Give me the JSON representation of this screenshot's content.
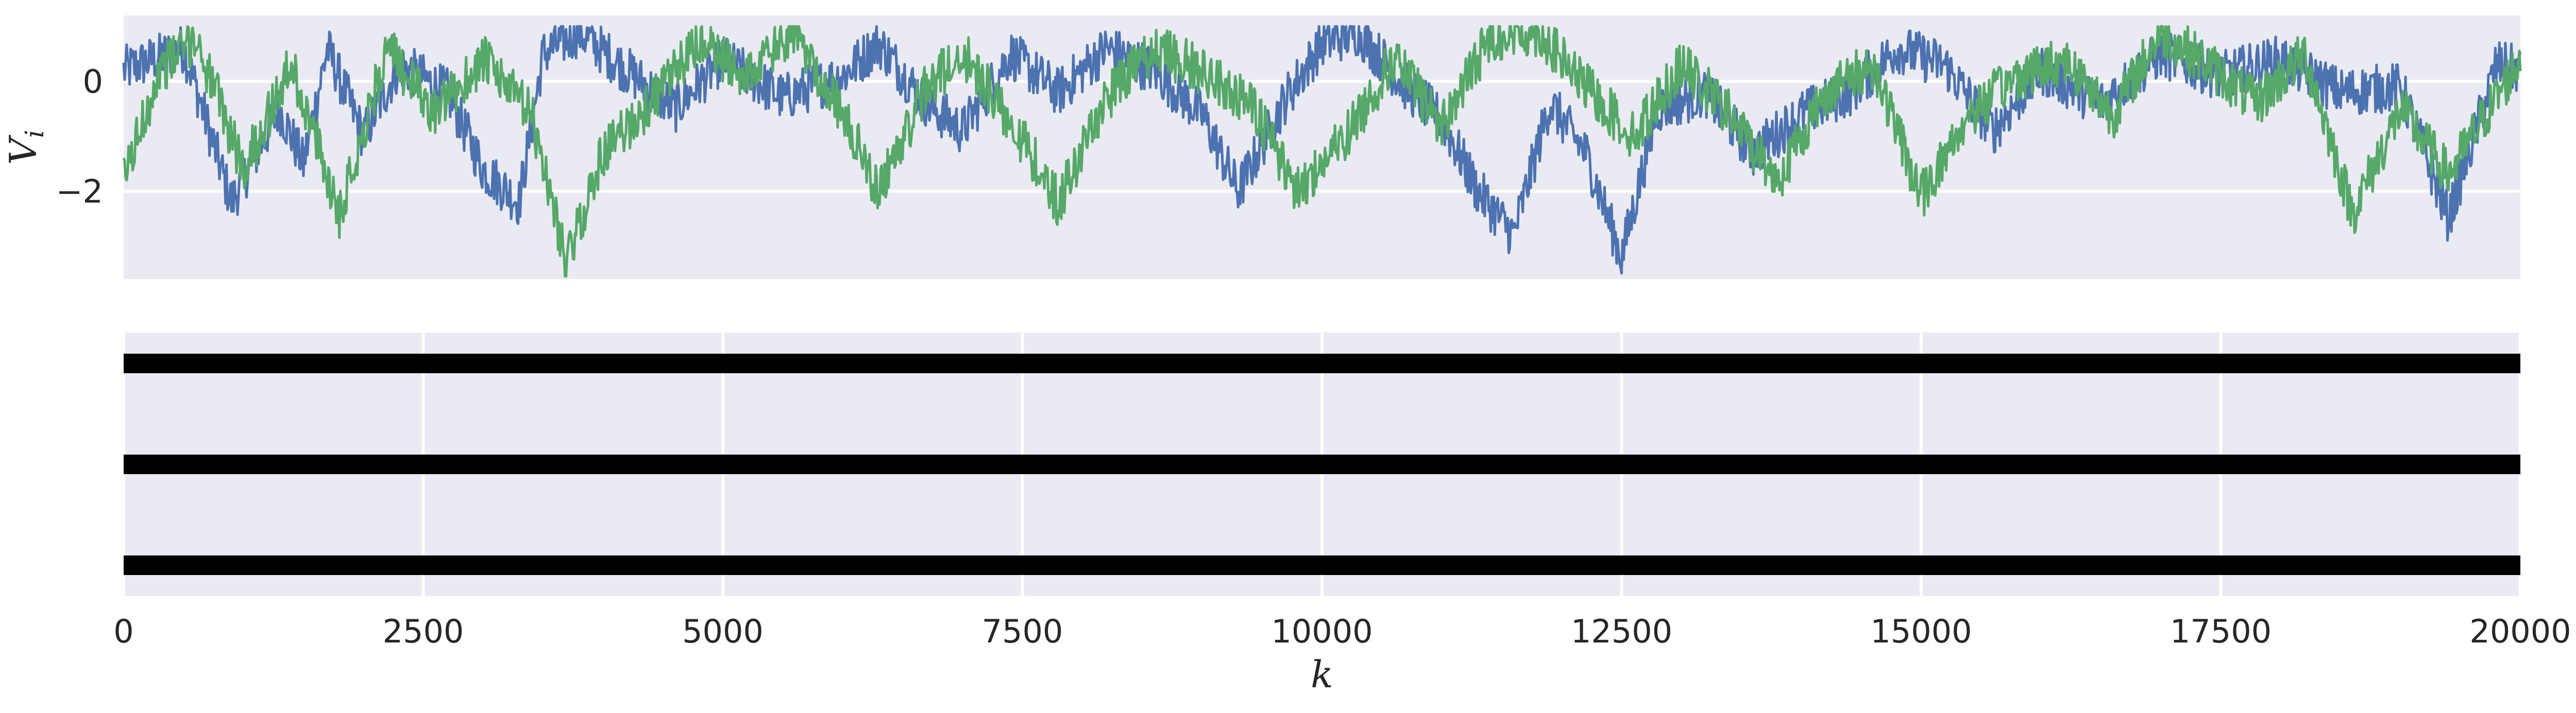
{
  "chart_data": [
    {
      "type": "line",
      "panel": "top",
      "xlabel": "",
      "ylabel": "V_i",
      "ylim": [
        -3.6,
        1.2
      ],
      "xlim": [
        0,
        20000
      ],
      "yticks": [
        0,
        -2
      ],
      "ytick_labels": [
        "0",
        "−2"
      ],
      "grid": true,
      "series": [
        {
          "color": "#4C72B0",
          "x": [
            0,
            500,
            900,
            1300,
            1500,
            1700,
            2000,
            2300,
            2700,
            3000,
            3300,
            3500,
            3800,
            4200,
            4600,
            5000,
            5500,
            6000,
            6300,
            6700,
            7000,
            7400,
            7800,
            8200,
            8600,
            9000,
            9300,
            9700,
            10000,
            10300,
            10700,
            11000,
            11300,
            11600,
            11900,
            12200,
            12500,
            12800,
            13200,
            13600,
            14000,
            14400,
            14800,
            15200,
            15600,
            16000,
            16500,
            17000,
            17500,
            18000,
            18500,
            19000,
            19400,
            19800,
            20000
          ],
          "y": [
            0.2,
            0.6,
            -2.2,
            -0.5,
            -1.5,
            0.6,
            -1.0,
            0.3,
            -0.2,
            -1.6,
            -2.2,
            0.5,
            0.9,
            0.2,
            -0.5,
            0.4,
            -0.3,
            0.1,
            0.7,
            -0.4,
            -0.9,
            0.5,
            -0.2,
            0.6,
            0.2,
            -0.6,
            -2.0,
            -0.3,
            0.7,
            0.9,
            -0.1,
            -0.7,
            -2.0,
            -2.8,
            -0.4,
            -1.3,
            -3.2,
            -0.5,
            -0.2,
            -1.3,
            -0.6,
            -0.2,
            0.6,
            0.3,
            -0.9,
            0.2,
            -0.4,
            0.5,
            0.1,
            0.4,
            -0.2,
            -0.1,
            -2.5,
            0.3,
            0.2
          ]
        },
        {
          "color": "#55A868",
          "x": [
            0,
            300,
            600,
            1000,
            1400,
            1800,
            2200,
            2600,
            3000,
            3400,
            3700,
            4000,
            4400,
            4800,
            5200,
            5600,
            6000,
            6300,
            6700,
            7000,
            7400,
            7800,
            8200,
            8600,
            9000,
            9400,
            9800,
            10200,
            10600,
            11000,
            11400,
            11800,
            12200,
            12600,
            13000,
            13400,
            13800,
            14200,
            14600,
            15000,
            15400,
            15800,
            16200,
            16600,
            17000,
            17400,
            17800,
            18200,
            18600,
            19000,
            19400,
            19800,
            20000
          ],
          "y": [
            -1.8,
            0.2,
            0.8,
            -1.6,
            0.3,
            -2.4,
            0.6,
            -0.6,
            0.4,
            -0.6,
            -3.3,
            -1.3,
            -0.4,
            0.7,
            0.1,
            0.9,
            -0.6,
            -2.0,
            -0.1,
            0.5,
            -0.7,
            -2.2,
            -0.3,
            0.6,
            0.2,
            -0.4,
            -2.0,
            -1.0,
            0.4,
            -0.8,
            0.8,
            0.9,
            -0.1,
            -1.0,
            0.3,
            -0.6,
            -1.8,
            -0.2,
            0.3,
            -2.1,
            -0.6,
            0.1,
            0.4,
            -0.6,
            0.9,
            0.3,
            -0.4,
            0.5,
            -2.4,
            -0.5,
            -1.7,
            -0.3,
            0.4
          ]
        }
      ]
    },
    {
      "type": "bar",
      "panel": "bottom",
      "orientation": "horizontal",
      "xlabel": "k",
      "ylabel": "",
      "xlim": [
        0,
        20000
      ],
      "xticks": [
        0,
        2500,
        5000,
        7500,
        10000,
        12500,
        15000,
        17500,
        20000
      ],
      "xtick_labels": [
        "0",
        "2500",
        "5000",
        "7500",
        "10000",
        "12500",
        "15000",
        "17500",
        "20000"
      ],
      "grid": true,
      "bars": [
        {
          "level": 0,
          "start": 0,
          "end": 20000,
          "color": "#000000"
        },
        {
          "level": 1,
          "start": 0,
          "end": 20000,
          "color": "#000000"
        },
        {
          "level": 2,
          "start": 0,
          "end": 20000,
          "color": "#000000"
        }
      ]
    }
  ]
}
